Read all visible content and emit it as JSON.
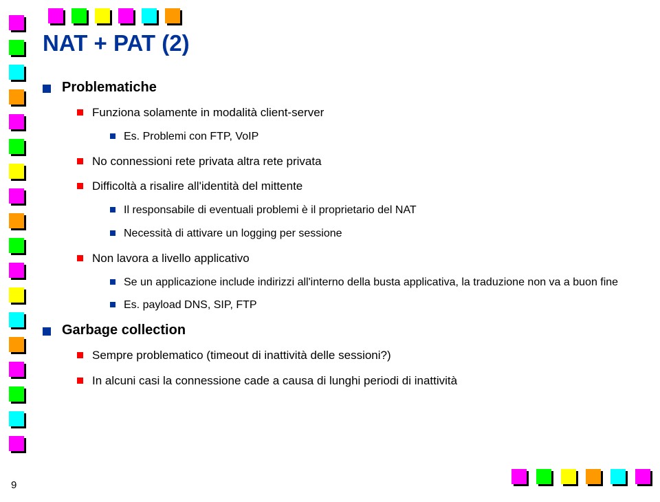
{
  "title": "NAT + PAT (2)",
  "page_number": "9",
  "colors": {
    "title": "#003399",
    "bullet1": "#003399",
    "bullet2": "#ff0000",
    "bullet3": "#003399",
    "background": "#ffffff"
  },
  "decor_colors": {
    "magenta": "#ff00ff",
    "green": "#00ff00",
    "cyan": "#00ffff",
    "orange": "#ff9900",
    "yellow": "#ffff00"
  },
  "sections": [
    {
      "label": "Problematiche",
      "items": [
        {
          "text": "Funziona solamente in modalità client-server",
          "sub": [
            {
              "text": "Es. Problemi con FTP, VoIP"
            }
          ]
        },
        {
          "text": "No connessioni rete privata altra rete privata"
        },
        {
          "text": "Difficoltà a risalire all'identità del mittente",
          "sub": [
            {
              "text": "Il responsabile di eventuali problemi è il proprietario del NAT"
            },
            {
              "text": "Necessità di attivare un logging per sessione"
            }
          ]
        },
        {
          "text": "Non lavora a livello applicativo",
          "sub": [
            {
              "text": "Se un applicazione include indirizzi all'interno della busta applicativa, la traduzione non va a buon fine"
            },
            {
              "text": "Es. payload DNS, SIP, FTP"
            }
          ]
        }
      ]
    },
    {
      "label": "Garbage collection",
      "items": [
        {
          "text": "Sempre problematico (timeout di inattività delle sessioni?)"
        },
        {
          "text": "In alcuni casi la connessione cade a causa di lunghi periodi di inattività"
        }
      ]
    }
  ],
  "left_band_colors": [
    "#ff00ff",
    "#00ff00",
    "#00ffff",
    "#ff9900",
    "#ff00ff",
    "#00ff00",
    "#ffff00",
    "#ff00ff",
    "#ff9900",
    "#00ff00",
    "#ff00ff",
    "#ffff00",
    "#00ffff",
    "#ff9900",
    "#ff00ff",
    "#00ff00",
    "#00ffff",
    "#ff00ff"
  ],
  "top_band_colors": [
    "#ff00ff",
    "#00ff00",
    "#ffff00",
    "#ff00ff",
    "#00ffff",
    "#ff9900"
  ],
  "right_band_colors": [
    "#ff00ff",
    "#00ff00",
    "#ffff00",
    "#ff9900",
    "#00ffff",
    "#ff00ff"
  ]
}
